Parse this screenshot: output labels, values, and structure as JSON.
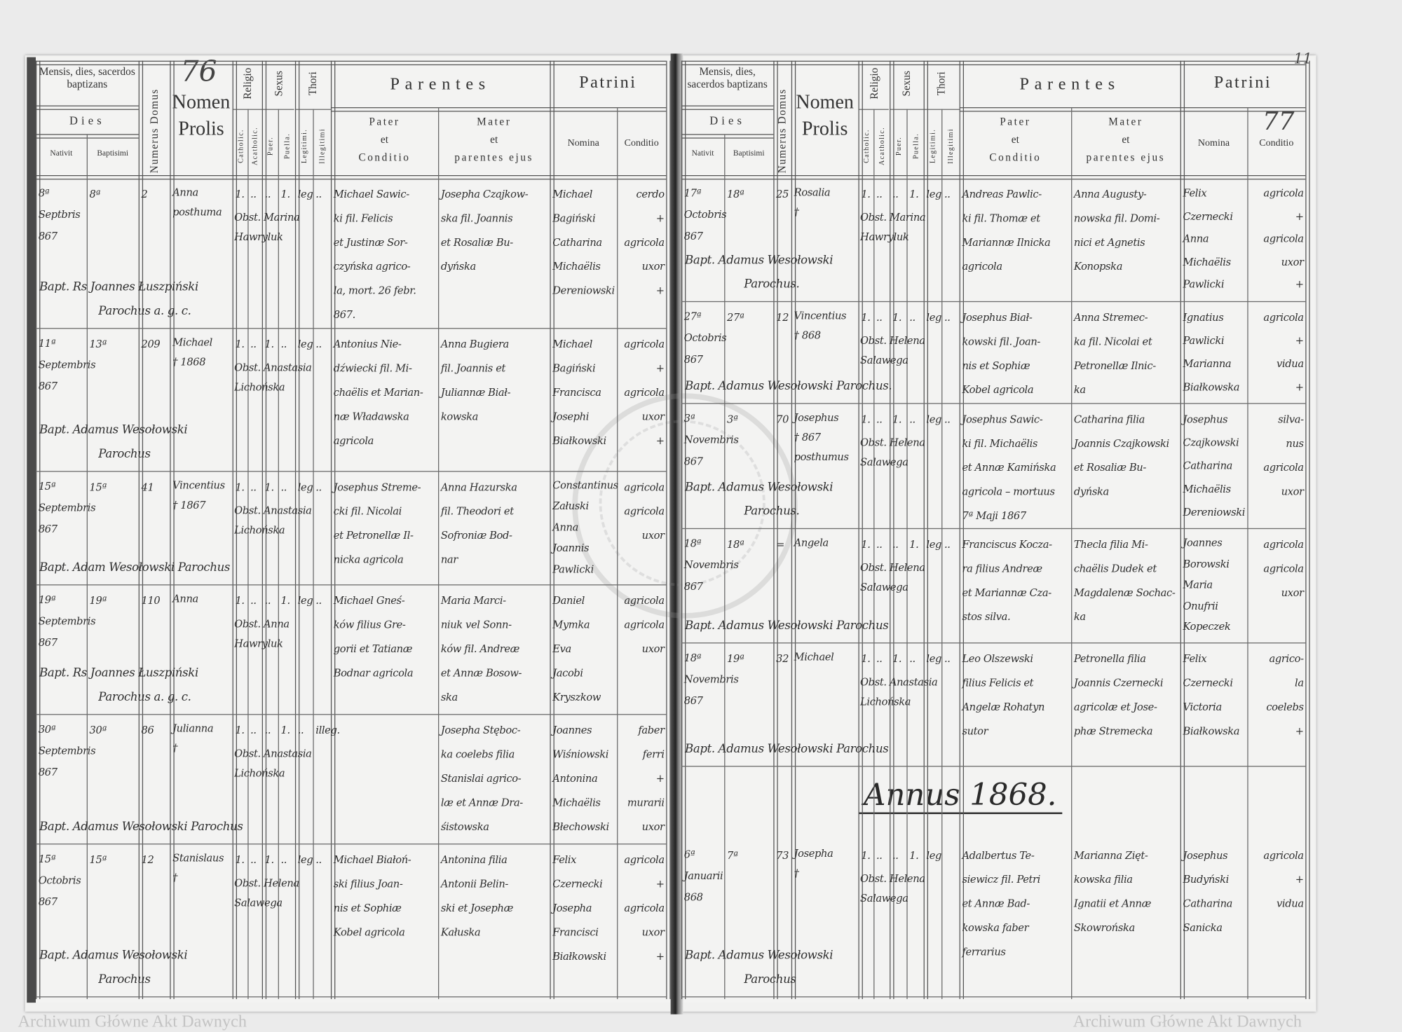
{
  "page_numbers": {
    "left": "76",
    "right": "77",
    "corner": "11"
  },
  "watermark": "Archiwum Główne Akt Dawnych",
  "header": {
    "mensis": "Mensis, dies, sacerdos baptizans",
    "dies": "Dies",
    "nativit": "Nativit",
    "baptisimi": "Baptisimi",
    "numerus_domus": "Numerus Domus",
    "nomen": "Nomen",
    "prolis": "Prolis",
    "religio": "Religio",
    "catholic": "Catholic.",
    "acatholic": "Acatholic.",
    "sexus": "Sexus",
    "puer": "Puer.",
    "puella": "Puella.",
    "thori": "Thori",
    "legitimi": "Legitimi.",
    "illegitimi": "Illegitimi",
    "parentes": "Parentes",
    "pater": [
      "Pater",
      "et",
      "Conditio"
    ],
    "mater": [
      "Mater",
      "et",
      "parentes ejus"
    ],
    "patrini": "Patrini",
    "nomina": "Nomina",
    "conditio": "Conditio"
  },
  "left_entries": [
    {
      "nativit": [
        "8ª",
        "Septbris",
        "867"
      ],
      "baptisimi": [
        "8ª"
      ],
      "domus": "2",
      "nomen": [
        "Anna",
        "posthuma"
      ],
      "catholic": "1.",
      "acatholic": "..",
      "puer": "..",
      "puella": "1.",
      "legitimi": "leg",
      "illegitimi": "..",
      "obstetrix": "Obst. Marina Hawryluk",
      "pater": [
        "Michael Sawic-",
        "ki fil. Felicis",
        "et Justinæ Sor-",
        "czyńska agrico-",
        "la, mort. 26 febr.",
        "867."
      ],
      "mater": [
        "Josepha Czajkow-",
        "ska fil. Joannis",
        "et Rosaliæ Bu-",
        "dyńska"
      ],
      "patrini_nomina": [
        "Michael",
        "Bagiński",
        "Catharina",
        "Michaëlis",
        "Dereniowski"
      ],
      "patrini_conditio": [
        "cerdo",
        "+",
        "agricola",
        "uxor",
        "+"
      ],
      "baptizans": [
        "Bapt. Rs Joannes Łuszpiński",
        "Parochus a. g. c."
      ]
    },
    {
      "nativit": [
        "11ª",
        "Septembris",
        "867"
      ],
      "baptisimi": [
        "13ª"
      ],
      "domus": "209",
      "nomen": [
        "Michael",
        "† 1868"
      ],
      "catholic": "1.",
      "acatholic": "..",
      "puer": "1.",
      "puella": "..",
      "legitimi": "leg",
      "illegitimi": "..",
      "obstetrix": "Obst. Anastasia Lichońska",
      "pater": [
        "Antonius Nie-",
        "dźwiecki fil. Mi-",
        "chaëlis et Marian-",
        "næ Władawska",
        "agricola"
      ],
      "mater": [
        "Anna Bugiera",
        "fil. Joannis et",
        "Juliannæ Biał-",
        "kowska"
      ],
      "patrini_nomina": [
        "Michael",
        "Bagiński",
        "Francisca",
        "Josephi",
        "Białkowski"
      ],
      "patrini_conditio": [
        "agricola",
        "+",
        "agricola",
        "uxor",
        "+"
      ],
      "baptizans": [
        "Bapt. Adamus Wesołowski",
        "Parochus"
      ]
    },
    {
      "nativit": [
        "15ª",
        "Septembris",
        "867"
      ],
      "baptisimi": [
        "15ª"
      ],
      "domus": "41",
      "nomen": [
        "Vincentius",
        "† 1867"
      ],
      "catholic": "1.",
      "acatholic": "..",
      "puer": "1.",
      "puella": "..",
      "legitimi": "leg",
      "illegitimi": "..",
      "obstetrix": "Obst. Anastasia Lichońska",
      "pater": [
        "Josephus Streme-",
        "cki fil. Nicolai",
        "et Petronellæ Il-",
        "nicka agricola"
      ],
      "mater": [
        "Anna Hazurska",
        "fil. Theodori et",
        "Sofroniæ Bod-",
        "nar"
      ],
      "patrini_nomina": [
        "Constantinus",
        "Załuski",
        "Anna",
        "Joannis",
        "Pawlicki"
      ],
      "patrini_conditio": [
        "agricola",
        "",
        "agricola",
        "uxor"
      ],
      "baptizans": [
        "Bapt. Adam Wesołowski Parochus"
      ]
    },
    {
      "nativit": [
        "19ª",
        "Septembris",
        "867"
      ],
      "baptisimi": [
        "19ª"
      ],
      "domus": "110",
      "nomen": [
        "Anna"
      ],
      "catholic": "1.",
      "acatholic": "..",
      "puer": "..",
      "puella": "1.",
      "legitimi": "leg",
      "illegitimi": "..",
      "obstetrix": "Obst. Anna Hawryluk",
      "pater": [
        "Michael Gneś-",
        "ków filius Gre-",
        "gorii et Tatianæ",
        "Bodnar agricola"
      ],
      "mater": [
        "Maria Marci-",
        "niuk vel Sonn-",
        "ków fil. Andreæ",
        "et Annæ Bosow-",
        "ska"
      ],
      "patrini_nomina": [
        "Daniel",
        "Mymka",
        "Eva",
        "Jacobi",
        "Kryszkow"
      ],
      "patrini_conditio": [
        "agricola",
        "",
        "agricola",
        "uxor"
      ],
      "baptizans": [
        "Bapt. Rs Joannes Łuszpiński",
        "Parochus a. g. c."
      ]
    },
    {
      "nativit": [
        "30ª",
        "Septembris",
        "867"
      ],
      "baptisimi": [
        "30ª"
      ],
      "domus": "86",
      "nomen": [
        "Julianna",
        "†"
      ],
      "catholic": "1.",
      "acatholic": "..",
      "puer": "..",
      "puella": "1.",
      "legitimi": "..",
      "illegitimi": "illeg.",
      "obstetrix": "Obst. Anastasia Lichońska",
      "pater": [],
      "mater": [
        "Josepha Stęboc-",
        "ka coelebs filia",
        "Stanislai agrico-",
        "læ et Annæ Dra-",
        "śistowska"
      ],
      "patrini_nomina": [
        "Joannes",
        "Wiśniowski",
        "Antonina",
        "Michaëlis",
        "Błechowski"
      ],
      "patrini_conditio": [
        "faber",
        "ferri",
        "+",
        "murarii",
        "uxor"
      ],
      "baptizans": [
        "Bapt. Adamus Wesołowski Parochus"
      ]
    },
    {
      "nativit": [
        "15ª",
        "Octobris",
        "867"
      ],
      "baptisimi": [
        "15ª"
      ],
      "domus": "12",
      "nomen": [
        "Stanislaus",
        "†"
      ],
      "catholic": "1.",
      "acatholic": "..",
      "puer": "1.",
      "puella": "..",
      "legitimi": "leg",
      "illegitimi": "..",
      "obstetrix": "Obst. Helena Salawega",
      "pater": [
        "Michael Białoń-",
        "ski filius Joan-",
        "nis et Sophiæ",
        "Kobel agricola"
      ],
      "mater": [
        "Antonina filia",
        "Antonii Belin-",
        "ski et Josephæ",
        "Kałuska"
      ],
      "patrini_nomina": [
        "Felix",
        "Czernecki",
        "Josepha",
        "Francisci",
        "Białkowski"
      ],
      "patrini_conditio": [
        "agricola",
        "+",
        "agricola",
        "uxor",
        "+"
      ],
      "baptizans": [
        "Bapt. Adamus Wesołowski",
        "Parochus"
      ]
    }
  ],
  "right_entries": [
    {
      "nativit": [
        "17ª",
        "Octobris",
        "867"
      ],
      "baptisimi": [
        "18ª"
      ],
      "domus": "25",
      "nomen": [
        "Rosalia",
        "†"
      ],
      "catholic": "1.",
      "acatholic": "..",
      "puer": "..",
      "puella": "1.",
      "legitimi": "leg",
      "illegitimi": "..",
      "obstetrix": "Obst. Marina Hawryluk",
      "pater": [
        "Andreas Pawlic-",
        "ki fil. Thomæ et",
        "Mariannæ Ilnicka",
        "agricola"
      ],
      "mater": [
        "Anna Augusty-",
        "nowska fil. Domi-",
        "nici et Agnetis",
        "Konopska"
      ],
      "patrini_nomina": [
        "Felix",
        "Czernecki",
        "Anna",
        "Michaëlis",
        "Pawlicki"
      ],
      "patrini_conditio": [
        "agricola",
        "+",
        "agricola",
        "uxor",
        "+"
      ],
      "baptizans": [
        "Bapt. Adamus Wesołowski",
        "Parochus."
      ]
    },
    {
      "nativit": [
        "27ª",
        "Octobris",
        "867"
      ],
      "baptisimi": [
        "27ª"
      ],
      "domus": "12",
      "nomen": [
        "Vincentius",
        "† 868"
      ],
      "catholic": "1.",
      "acatholic": "..",
      "puer": "1.",
      "puella": "..",
      "legitimi": "leg",
      "illegitimi": "..",
      "obstetrix": "Obst. Helena Salawega",
      "pater": [
        "Josephus Biał-",
        "kowski fil. Joan-",
        "nis et Sophiæ",
        "Kobel agricola"
      ],
      "mater": [
        "Anna Stremec-",
        "ka fil. Nicolai et",
        "Petronellæ Ilnic-",
        "ka"
      ],
      "patrini_nomina": [
        "Ignatius",
        "Pawlicki",
        "Marianna",
        "Białkowska"
      ],
      "patrini_conditio": [
        "agricola",
        "+",
        "vidua",
        "+"
      ],
      "baptizans": [
        "Bapt. Adamus Wesołowski Parochus."
      ]
    },
    {
      "nativit": [
        "3ª",
        "Novembris",
        "867"
      ],
      "baptisimi": [
        "3ª"
      ],
      "domus": "70",
      "nomen": [
        "Josephus",
        "† 867",
        "posthumus"
      ],
      "catholic": "1.",
      "acatholic": "..",
      "puer": "1.",
      "puella": "..",
      "legitimi": "leg",
      "illegitimi": "..",
      "obstetrix": "Obst. Helena Salawega",
      "pater": [
        "Josephus Sawic-",
        "ki fil. Michaëlis",
        "et Annæ Kamińska",
        "agricola – mortuus",
        "7ª Maji 1867"
      ],
      "mater": [
        "Catharina filia",
        "Joannis Czajkowski",
        "et Rosaliæ Bu-",
        "dyńska"
      ],
      "patrini_nomina": [
        "Josephus",
        "Czajkowski",
        "Catharina",
        "Michaëlis",
        "Dereniowski"
      ],
      "patrini_conditio": [
        "silva-",
        "nus",
        "agricola",
        "uxor"
      ],
      "baptizans": [
        "Bapt. Adamus Wesołowski",
        "Parochus."
      ]
    },
    {
      "nativit": [
        "18ª",
        "Novembris",
        "867"
      ],
      "baptisimi": [
        "18ª"
      ],
      "domus": "=",
      "nomen": [
        "Angela"
      ],
      "catholic": "1.",
      "acatholic": "..",
      "puer": "..",
      "puella": "1.",
      "legitimi": "leg",
      "illegitimi": "..",
      "obstetrix": "Obst. Helena Salawega",
      "pater": [
        "Franciscus Kocza-",
        "ra filius Andreæ",
        "et Mariannæ Cza-",
        "stos silva."
      ],
      "mater": [
        "Thecla filia Mi-",
        "chaëlis Dudek et",
        "Magdalenæ Sochac-",
        "ka"
      ],
      "patrini_nomina": [
        "Joannes",
        "Borowski",
        "Maria",
        "Onufrii",
        "Kopeczek"
      ],
      "patrini_conditio": [
        "agricola",
        "",
        "agricola",
        "uxor"
      ],
      "baptizans": [
        "Bapt. Adamus Wesołowski Parochus"
      ]
    },
    {
      "nativit": [
        "18ª",
        "Novembris",
        "867"
      ],
      "baptisimi": [
        "19ª"
      ],
      "domus": "32",
      "nomen": [
        "Michael"
      ],
      "catholic": "1.",
      "acatholic": "..",
      "puer": "1.",
      "puella": "..",
      "legitimi": "leg",
      "illegitimi": "..",
      "obstetrix": "Obst. Anastasia Lichońska",
      "pater": [
        "Leo Olszewski",
        "filius Felicis et",
        "Angelæ Rohatyn",
        "sutor"
      ],
      "mater": [
        "Petronella filia",
        "Joannis Czernecki",
        "agricolæ et Jose-",
        "phæ Stremecka"
      ],
      "patrini_nomina": [
        "Felix",
        "Czernecki",
        "Victoria",
        "Białkowska"
      ],
      "patrini_conditio": [
        "agrico-",
        "la",
        "coelebs",
        "+"
      ],
      "baptizans": [
        "Bapt. Adamus Wesołowski Parochus"
      ]
    },
    {
      "nativit": [
        "6ª",
        "Januarii",
        "868"
      ],
      "baptisimi": [
        "7ª"
      ],
      "domus": "73",
      "nomen": [
        "Josepha",
        "†"
      ],
      "catholic": "1.",
      "acatholic": "..",
      "puer": "..",
      "puella": "1.",
      "legitimi": "leg",
      "illegitimi": "",
      "obstetrix": "Obst. Helena Salawega",
      "pater": [
        "Adalbertus Te-",
        "siewicz fil. Petri",
        "et Annæ Bad-",
        "kowska faber",
        "ferrarius"
      ],
      "mater": [
        "Marianna Zięt-",
        "kowska filia",
        "Ignatii et Annæ",
        "Skowrońska"
      ],
      "patrini_nomina": [
        "Josephus",
        "Budyński",
        "Catharina",
        "Sanicka"
      ],
      "patrini_conditio": [
        "agricola",
        "+",
        "vidua",
        ""
      ],
      "baptizans": [
        "Bapt. Adamus Wesołowski",
        "Parochus"
      ]
    }
  ],
  "year_heading": "Annus 1868."
}
